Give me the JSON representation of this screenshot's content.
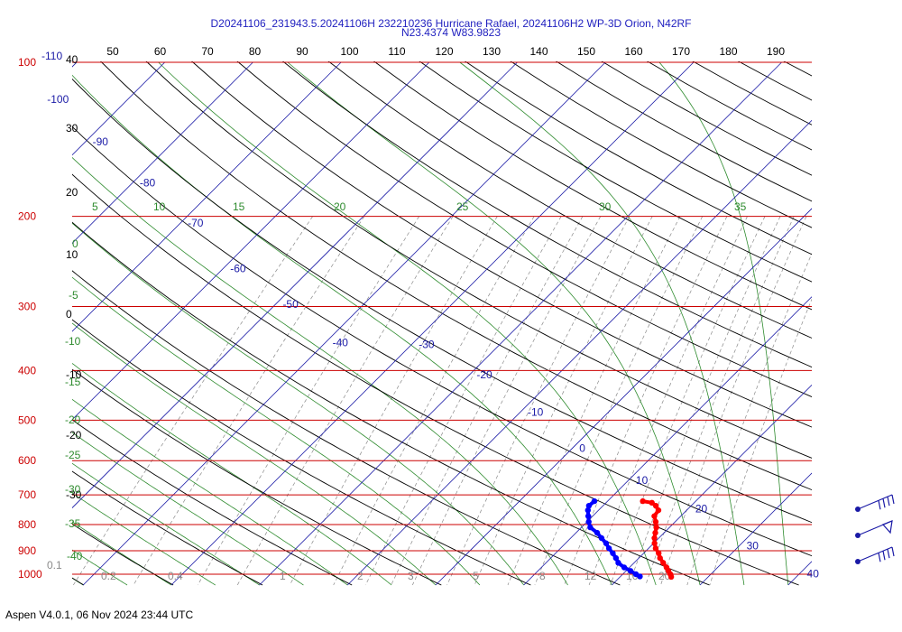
{
  "header": {
    "title_line1": "D20241106_231943.5.20241106H 232210236 Hurricane Rafael, 20241106H2 WP-3D Orion, N42RF",
    "title_line2": "N23.4374 W83.9823"
  },
  "footer": {
    "text": "Aspen V4.0.1, 06 Nov 2024  23:44 UTC"
  },
  "colors": {
    "pressure_isobar": "#cc0000",
    "isotherm": "#1a1aa6",
    "dry_adiabat": "#000000",
    "moist_adiabat": "#2e8b2e",
    "mixing_ratio": "#8a8a8a",
    "temperature_trace": "#ff0000",
    "dewpoint_trace": "#0000ff"
  },
  "chart_data": {
    "type": "line",
    "diagram": "skew-T log-P",
    "pressure_axis": {
      "labels": [
        "100",
        "200",
        "300",
        "400",
        "500",
        "600",
        "700",
        "800",
        "900",
        "1000"
      ],
      "values": [
        100,
        200,
        300,
        400,
        500,
        600,
        700,
        800,
        900,
        1000
      ],
      "scale": "log",
      "range": [
        100,
        1000
      ]
    },
    "top_axis_labels": [
      "50",
      "60",
      "70",
      "80",
      "90",
      "100",
      "110",
      "120",
      "130",
      "140",
      "150",
      "160",
      "170",
      "180",
      "190"
    ],
    "left_labels": [
      {
        "text": "-110",
        "value": -110
      },
      {
        "text": "40",
        "value": 40
      },
      {
        "text": "30",
        "value": 30
      },
      {
        "text": "20",
        "value": 20
      },
      {
        "text": "10",
        "value": 10
      },
      {
        "text": "0",
        "value": 0
      },
      {
        "text": "-10",
        "value": -10
      },
      {
        "text": "-20",
        "value": -20
      },
      {
        "text": "-30",
        "value": -30
      }
    ],
    "isotherm_labels": [
      {
        "text": "-100",
        "value": -100,
        "pressure": 118
      },
      {
        "text": "-90",
        "value": -90,
        "pressure": 143
      },
      {
        "text": "-80",
        "value": -80,
        "pressure": 172
      },
      {
        "text": "-70",
        "value": -70,
        "pressure": 206
      },
      {
        "text": "-60",
        "value": -60,
        "pressure": 253
      },
      {
        "text": "-50",
        "value": -50,
        "pressure": 297
      },
      {
        "text": "-40",
        "value": -40,
        "pressure": 353
      },
      {
        "text": "-30",
        "value": -30,
        "pressure": 356
      },
      {
        "text": "-20",
        "value": -20,
        "pressure": 408
      },
      {
        "text": "-10",
        "value": -10,
        "pressure": 482
      },
      {
        "text": "0",
        "value": 0,
        "pressure": 568
      },
      {
        "text": "10",
        "value": 10,
        "pressure": 655
      },
      {
        "text": "20",
        "value": 20,
        "pressure": 745
      },
      {
        "text": "30",
        "value": 30,
        "pressure": 880
      },
      {
        "text": "40",
        "value": 40,
        "pressure": 997
      }
    ],
    "moist_adiabat_labels": [
      "5",
      "10",
      "15",
      "20",
      "25",
      "30",
      "35",
      "0",
      "-5",
      "-10",
      "-15",
      "-20",
      "-25",
      "-30",
      "-35",
      "-40"
    ],
    "mixing_ratio_labels": [
      "0.1",
      "0.2",
      "0.4",
      "1",
      "2",
      "3",
      "5",
      "8",
      "12",
      "16",
      "20"
    ],
    "series": [
      {
        "name": "",
        "color": "#ff0000",
        "points": [
          {
            "pressure": 720,
            "temp": 14.0
          },
          {
            "pressure": 725,
            "temp": 15.2
          },
          {
            "pressure": 735,
            "temp": 16.0
          },
          {
            "pressure": 750,
            "temp": 16.8
          },
          {
            "pressure": 770,
            "temp": 17.0
          },
          {
            "pressure": 790,
            "temp": 17.8
          },
          {
            "pressure": 810,
            "temp": 18.5
          },
          {
            "pressure": 830,
            "temp": 19.0
          },
          {
            "pressure": 850,
            "temp": 19.5
          },
          {
            "pressure": 870,
            "temp": 20.1
          },
          {
            "pressure": 890,
            "temp": 20.8
          },
          {
            "pressure": 910,
            "temp": 21.7
          },
          {
            "pressure": 930,
            "temp": 22.4
          },
          {
            "pressure": 950,
            "temp": 23.3
          },
          {
            "pressure": 970,
            "temp": 24.2
          },
          {
            "pressure": 985,
            "temp": 24.8
          },
          {
            "pressure": 1000,
            "temp": 25.4
          },
          {
            "pressure": 1012,
            "temp": 25.8
          }
        ]
      },
      {
        "name": "",
        "color": "#0000ff",
        "points": [
          {
            "pressure": 720,
            "temp": 8.5
          },
          {
            "pressure": 735,
            "temp": 8.4
          },
          {
            "pressure": 750,
            "temp": 8.8
          },
          {
            "pressure": 770,
            "temp": 9.5
          },
          {
            "pressure": 790,
            "temp": 10.2
          },
          {
            "pressure": 810,
            "temp": 11.0
          },
          {
            "pressure": 830,
            "temp": 12.4
          },
          {
            "pressure": 850,
            "temp": 13.5
          },
          {
            "pressure": 870,
            "temp": 14.6
          },
          {
            "pressure": 890,
            "temp": 15.5
          },
          {
            "pressure": 910,
            "temp": 16.5
          },
          {
            "pressure": 930,
            "temp": 17.4
          },
          {
            "pressure": 950,
            "temp": 18.2
          },
          {
            "pressure": 970,
            "temp": 19.4
          },
          {
            "pressure": 985,
            "temp": 20.5
          },
          {
            "pressure": 1000,
            "temp": 21.5
          },
          {
            "pressure": 1010,
            "temp": 22.2
          }
        ]
      }
    ],
    "wind_barbs": [
      {
        "pressure": 800,
        "type": "barb"
      },
      {
        "pressure": 900,
        "type": "pennant"
      },
      {
        "pressure": 1000,
        "type": "barb"
      }
    ]
  }
}
